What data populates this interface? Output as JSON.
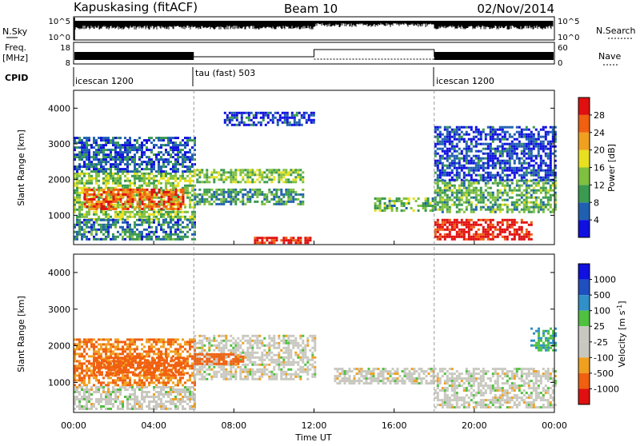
{
  "header": {
    "station": "Kapuskasing (fitACF)",
    "beam": "Beam 10",
    "date": "02/Nov/2014"
  },
  "nsky_panel": {
    "left_label": "N.Sky",
    "right_label": "N.Search",
    "left_ticks": [
      "10^5",
      "10^0"
    ],
    "right_ticks": [
      "10^5",
      "10^0"
    ]
  },
  "freq_panel": {
    "left_label_line1": "Freq.",
    "left_label_line2": "[MHz]",
    "right_label": "Nave",
    "left_ticks": [
      "18",
      "8"
    ],
    "right_ticks": [
      "60",
      "0"
    ]
  },
  "cpid": {
    "label": "CPID",
    "segments": [
      {
        "name": "icescan 1200",
        "start_hour": 0,
        "end_hour": 6
      },
      {
        "name": "tau (fast) 503",
        "start_hour": 6,
        "end_hour": 18
      },
      {
        "name": "icescan 1200",
        "start_hour": 18,
        "end_hour": 24
      }
    ]
  },
  "power_colorbar": {
    "label": "Power [dB]",
    "ticks": [
      "28",
      "24",
      "20",
      "16",
      "12",
      "8",
      "4"
    ],
    "colors": [
      "#1010e0",
      "#2060b0",
      "#3a9a50",
      "#80c040",
      "#e8e020",
      "#f0a020",
      "#f06010",
      "#e01010"
    ]
  },
  "velocity_colorbar": {
    "label_main": "Velocity [m s",
    "label_sup": "-1",
    "label_end": "]",
    "ticks": [
      "1000",
      "500",
      "100",
      "25",
      "-25",
      "-100",
      "-500",
      "-1000"
    ],
    "colors": [
      "#1010e0",
      "#2050c0",
      "#3090c8",
      "#50c040",
      "#c8c8c0",
      "#c8c8c0",
      "#f0a020",
      "#f06010",
      "#e01010"
    ]
  },
  "axes": {
    "ylabel": "Slant Range [km]",
    "xlabel": "Time UT"
  },
  "chart_data": [
    {
      "type": "heatmap",
      "name": "power",
      "xlim_hours": [
        0,
        24
      ],
      "ylim_km": [
        180,
        4500
      ],
      "y_ticks": [
        1000,
        2000,
        3000,
        4000
      ],
      "x_ticks": [
        "00:00",
        "04:00",
        "08:00",
        "12:00",
        "16:00",
        "20:00",
        "00:00"
      ],
      "regions": [
        {
          "t0": 0.0,
          "t1": 6.0,
          "r0": 900,
          "r1": 2200,
          "level": 14
        },
        {
          "t0": 0.5,
          "t1": 5.5,
          "r0": 1200,
          "r1": 1750,
          "level": 26
        },
        {
          "t0": 0.0,
          "t1": 6.0,
          "r0": 2200,
          "r1": 3200,
          "level": 6
        },
        {
          "t0": 0.0,
          "t1": 6.0,
          "r0": 300,
          "r1": 900,
          "level": 8
        },
        {
          "t0": 6.0,
          "t1": 11.5,
          "r0": 1900,
          "r1": 2300,
          "level": 14
        },
        {
          "t0": 6.0,
          "t1": 11.5,
          "r0": 1300,
          "r1": 1750,
          "level": 10
        },
        {
          "t0": 7.5,
          "t1": 12.0,
          "r0": 3500,
          "r1": 3900,
          "level": 4
        },
        {
          "t0": 9.0,
          "t1": 11.8,
          "r0": 200,
          "r1": 400,
          "level": 30
        },
        {
          "t0": 15.0,
          "t1": 18.0,
          "r0": 1100,
          "r1": 1500,
          "level": 12
        },
        {
          "t0": 18.0,
          "t1": 24.0,
          "r0": 1100,
          "r1": 2000,
          "level": 12
        },
        {
          "t0": 18.0,
          "t1": 22.8,
          "r0": 300,
          "r1": 900,
          "level": 30
        },
        {
          "t0": 18.0,
          "t1": 24.0,
          "r0": 2000,
          "r1": 3500,
          "level": 4
        }
      ]
    },
    {
      "type": "heatmap",
      "name": "velocity",
      "xlim_hours": [
        0,
        24
      ],
      "ylim_km": [
        180,
        4500
      ],
      "y_ticks": [
        1000,
        2000,
        3000,
        4000
      ],
      "x_ticks": [
        "00:00",
        "04:00",
        "08:00",
        "12:00",
        "16:00",
        "20:00",
        "00:00"
      ],
      "regions": [
        {
          "t0": 0.0,
          "t1": 6.0,
          "r0": 900,
          "r1": 2200,
          "level": -100
        },
        {
          "t0": 1.0,
          "t1": 5.5,
          "r0": 1200,
          "r1": 1700,
          "level": -300
        },
        {
          "t0": 0.0,
          "t1": 6.0,
          "r0": 300,
          "r1": 900,
          "level": 0
        },
        {
          "t0": 6.0,
          "t1": 12.0,
          "r0": 1100,
          "r1": 2300,
          "level": 0
        },
        {
          "t0": 6.0,
          "t1": 8.5,
          "r0": 1500,
          "r1": 1800,
          "level": -200
        },
        {
          "t0": 13.0,
          "t1": 18.0,
          "r0": 1000,
          "r1": 1400,
          "level": 0
        },
        {
          "t0": 18.0,
          "t1": 24.0,
          "r0": 300,
          "r1": 1400,
          "level": 0
        },
        {
          "t0": 22.8,
          "t1": 24.0,
          "r0": 1900,
          "r1": 2500,
          "level": 100
        }
      ]
    }
  ]
}
